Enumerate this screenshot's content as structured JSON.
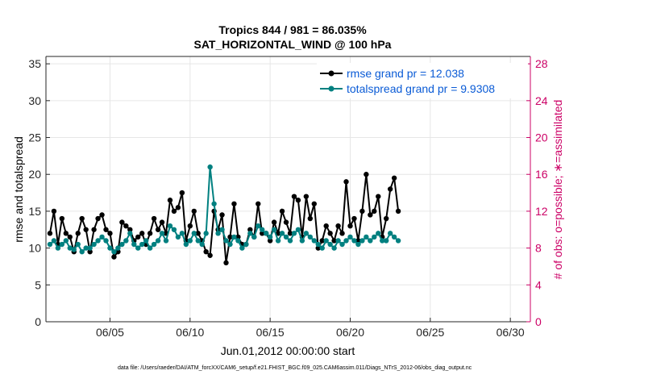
{
  "chart_data": {
    "type": "line",
    "title": "Tropics 844 / 981 = 86.035%",
    "subtitle": "SAT_HORIZONTAL_WIND @ 100 hPa",
    "xlabel": "Jun.01,2012 00:00:00 start",
    "ylabel": "rmse and totalspread",
    "y2label": "# of obs: o=possible; ∗=assimilated",
    "footnote": "data file: /Users/raeder/DAI/ATM_forcXX/CAM6_setup/f.e21.FHIST_BGC.f09_025.CAM6assim.011/Diags_NTrS_2012-06/obs_diag_output.nc",
    "xlim": [
      1.0,
      31.25
    ],
    "ylim": [
      0,
      36
    ],
    "y2lim": [
      0,
      28.8
    ],
    "x_ticks": [
      5,
      10,
      15,
      20,
      25,
      30
    ],
    "x_tick_labels": [
      "06/05",
      "06/10",
      "06/15",
      "06/20",
      "06/25",
      "06/30"
    ],
    "y_ticks": [
      0,
      5,
      10,
      15,
      20,
      25,
      30,
      35
    ],
    "y2_ticks": [
      0,
      4,
      8,
      12,
      16,
      20,
      24,
      28
    ],
    "colors": {
      "rmse": "#000000",
      "spread": "#008080",
      "obs": "#cc0066"
    },
    "series": [
      {
        "name": "rmse grand pr = 12.038",
        "axis": "left",
        "color": "#000000",
        "x": [
          1.25,
          1.5,
          1.75,
          2.0,
          2.25,
          2.5,
          2.75,
          3.0,
          3.25,
          3.5,
          3.75,
          4.0,
          4.25,
          4.5,
          4.75,
          5.0,
          5.25,
          5.5,
          5.75,
          6.0,
          6.25,
          6.5,
          6.75,
          7.0,
          7.25,
          7.5,
          7.75,
          8.0,
          8.25,
          8.5,
          8.75,
          9.0,
          9.25,
          9.5,
          9.75,
          10.0,
          10.25,
          10.5,
          10.75,
          11.0,
          11.25,
          11.5,
          11.75,
          12.0,
          12.25,
          12.5,
          12.75,
          13.0,
          13.25,
          13.5,
          13.75,
          14.0,
          14.25,
          14.5,
          14.75,
          15.0,
          15.25,
          15.5,
          15.75,
          16.0,
          16.25,
          16.5,
          16.75,
          17.0,
          17.25,
          17.5,
          17.75,
          18.0,
          18.25,
          18.5,
          18.75,
          19.0,
          19.25,
          19.5,
          19.75,
          20.0,
          20.25,
          20.5,
          20.75,
          21.0,
          21.25,
          21.5,
          21.75,
          22.0,
          22.25,
          22.5,
          22.75,
          23.0
        ],
        "y": [
          12,
          15,
          10.5,
          14,
          12,
          11.5,
          9.5,
          12,
          14,
          12.5,
          9.5,
          12.5,
          14,
          14.5,
          12.5,
          12,
          8.8,
          9.5,
          13.5,
          13,
          12.5,
          11,
          11.5,
          12,
          10.5,
          12,
          14,
          12.5,
          13.5,
          12,
          16.5,
          15,
          15.5,
          17.5,
          11,
          13,
          15,
          12,
          11,
          9.5,
          9,
          15,
          12.5,
          14.5,
          8,
          11.5,
          16,
          11.5,
          10.5,
          10.5,
          12.5,
          11.5,
          16,
          12,
          12,
          11,
          13.5,
          12,
          15,
          13.5,
          12,
          17,
          16.5,
          11.5,
          17,
          14,
          16,
          10,
          11,
          13,
          12,
          11,
          13,
          12,
          19,
          13,
          14,
          11,
          15,
          20,
          14.5,
          15,
          17,
          11.5,
          14,
          18,
          19.5,
          15
        ]
      },
      {
        "name": "totalspread grand pr = 9.9308",
        "axis": "left",
        "color": "#008080",
        "x": [
          1.25,
          1.5,
          1.75,
          2.0,
          2.25,
          2.5,
          2.75,
          3.0,
          3.25,
          3.5,
          3.75,
          4.0,
          4.25,
          4.5,
          4.75,
          5.0,
          5.25,
          5.5,
          5.75,
          6.0,
          6.25,
          6.5,
          6.75,
          7.0,
          7.25,
          7.5,
          7.75,
          8.0,
          8.25,
          8.5,
          8.75,
          9.0,
          9.25,
          9.5,
          9.75,
          10.0,
          10.25,
          10.5,
          10.75,
          11.0,
          11.25,
          11.5,
          11.75,
          12.0,
          12.25,
          12.5,
          12.75,
          13.0,
          13.25,
          13.5,
          13.75,
          14.0,
          14.25,
          14.5,
          14.75,
          15.0,
          15.25,
          15.5,
          15.75,
          16.0,
          16.25,
          16.5,
          16.75,
          17.0,
          17.25,
          17.5,
          17.75,
          18.0,
          18.25,
          18.5,
          18.75,
          19.0,
          19.25,
          19.5,
          19.75,
          20.0,
          20.25,
          20.5,
          20.75,
          21.0,
          21.25,
          21.5,
          21.75,
          22.0,
          22.25,
          22.5,
          22.75,
          23.0
        ],
        "y": [
          10.5,
          11,
          10,
          10.5,
          11,
          10,
          9.8,
          10.5,
          9.5,
          10,
          10,
          10.5,
          11,
          11.5,
          11,
          10,
          9.5,
          10,
          10.5,
          11,
          12,
          10.5,
          10,
          10.5,
          11,
          10,
          10.5,
          11,
          12,
          11,
          13,
          12.5,
          11.5,
          12,
          10.5,
          11,
          12,
          11,
          10.5,
          12,
          21,
          16,
          12,
          12.5,
          11,
          10.5,
          11.5,
          11,
          10,
          10.5,
          12,
          11.5,
          13,
          12.5,
          12,
          11.5,
          12.5,
          11,
          12,
          11.5,
          11,
          12,
          12.5,
          11,
          12,
          11.5,
          11,
          10.5,
          10,
          11,
          10.5,
          10,
          11,
          10.5,
          11,
          11.5,
          11,
          10.5,
          11,
          11.5,
          11,
          11.5,
          12,
          11,
          11,
          12,
          11.5,
          11
        ]
      }
    ],
    "legend": [
      "rmse grand pr = 12.038",
      "totalspread grand pr = 9.9308"
    ],
    "legend_location": "top-right"
  }
}
